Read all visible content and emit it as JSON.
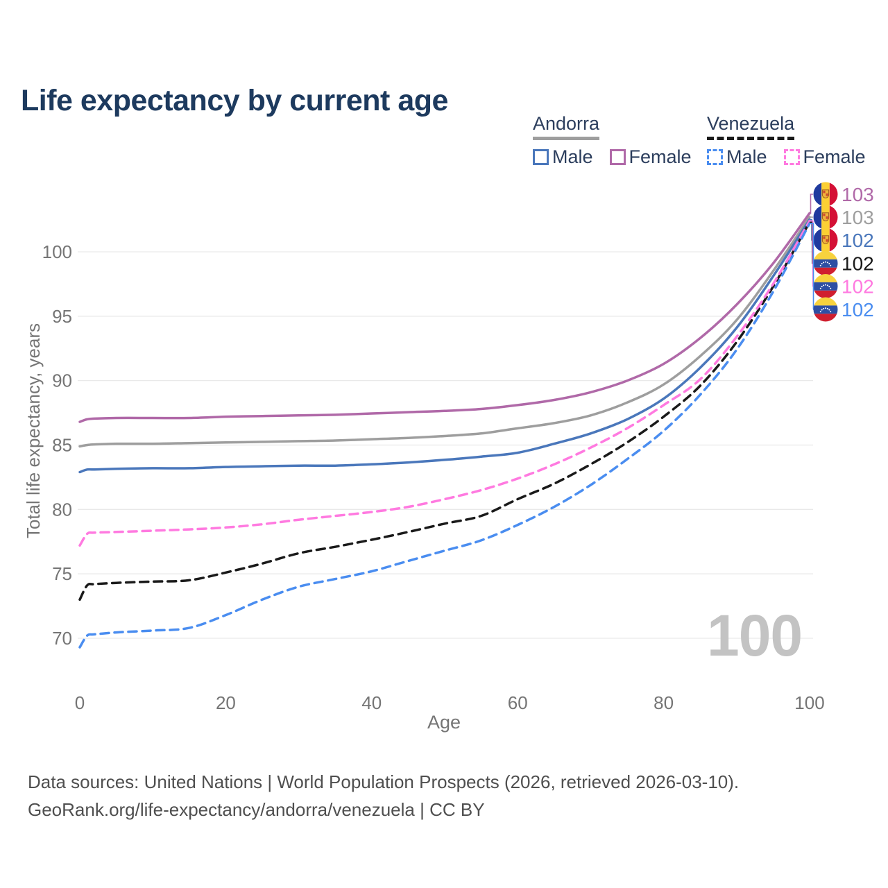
{
  "page": {
    "title": "Life expectancy by current age"
  },
  "colors": {
    "title_text": "#1d3a5e",
    "legend_text": "#2c3e5d",
    "axis_text": "#757575",
    "grid": "#e9e9e9",
    "watermark": "#c3c3c3",
    "footer_text": "#4f4f4f"
  },
  "legend": {
    "groups": [
      {
        "name": "Andorra",
        "line_style": "solid",
        "line_color": "#9e9e9e",
        "items": [
          {
            "label": "Male",
            "color": "#4a77bb",
            "dashed": false
          },
          {
            "label": "Female",
            "color": "#b069a8",
            "dashed": false
          }
        ]
      },
      {
        "name": "Venezuela",
        "line_style": "dashed",
        "line_color": "#1a1a1a",
        "items": [
          {
            "label": "Male",
            "color": "#4a8df0",
            "dashed": true
          },
          {
            "label": "Female",
            "color": "#ff7ae0",
            "dashed": true
          }
        ]
      }
    ]
  },
  "chart_data": {
    "type": "line",
    "title": "Life expectancy by current age",
    "xlabel": "Age",
    "ylabel": "Total life expectancy, years",
    "xlim": [
      0,
      100
    ],
    "ylim": [
      68,
      104.5
    ],
    "xticks": [
      0,
      20,
      40,
      60,
      80,
      100
    ],
    "yticks": [
      70,
      75,
      80,
      85,
      90,
      95,
      100
    ],
    "grid": "horizontal",
    "legend_position": "top-right",
    "ages": [
      0,
      1,
      2,
      5,
      10,
      15,
      20,
      25,
      30,
      35,
      40,
      45,
      50,
      55,
      60,
      65,
      70,
      75,
      80,
      85,
      90,
      95,
      100
    ],
    "series": [
      {
        "name": "Andorra Female",
        "country": "Andorra",
        "sex": "Female",
        "color": "#b069a8",
        "dashed": false,
        "flag": "andorra",
        "end_label": "103",
        "values": [
          86.8,
          87.0,
          87.05,
          87.1,
          87.1,
          87.1,
          87.2,
          87.25,
          87.3,
          87.35,
          87.45,
          87.55,
          87.65,
          87.8,
          88.1,
          88.5,
          89.1,
          90.0,
          91.3,
          93.3,
          95.9,
          99.1,
          103.0
        ]
      },
      {
        "name": "Andorra Both sexes",
        "country": "Andorra",
        "sex": "Both",
        "color": "#9e9e9e",
        "dashed": false,
        "flag": "andorra",
        "end_label": "103",
        "values": [
          84.9,
          85.0,
          85.05,
          85.1,
          85.1,
          85.15,
          85.2,
          85.25,
          85.3,
          85.35,
          85.45,
          85.55,
          85.7,
          85.9,
          86.3,
          86.7,
          87.3,
          88.3,
          89.7,
          91.9,
          94.7,
          98.5,
          102.7
        ]
      },
      {
        "name": "Andorra Male",
        "country": "Andorra",
        "sex": "Male",
        "color": "#4a77bb",
        "dashed": false,
        "flag": "andorra",
        "end_label": "102",
        "values": [
          82.9,
          83.1,
          83.1,
          83.15,
          83.2,
          83.2,
          83.3,
          83.35,
          83.4,
          83.4,
          83.5,
          83.65,
          83.85,
          84.1,
          84.4,
          85.1,
          85.9,
          87.0,
          88.6,
          91.0,
          94.1,
          98.1,
          102.5
        ]
      },
      {
        "name": "Venezuela Both sexes",
        "country": "Venezuela",
        "sex": "Both",
        "color": "#1a1a1a",
        "dashed": true,
        "flag": "venezuela",
        "end_label": "102",
        "values": [
          73.0,
          74.1,
          74.2,
          74.3,
          74.4,
          74.5,
          75.1,
          75.8,
          76.6,
          77.1,
          77.65,
          78.25,
          78.9,
          79.5,
          80.8,
          82.0,
          83.5,
          85.2,
          87.2,
          89.6,
          93.0,
          97.3,
          102.3
        ]
      },
      {
        "name": "Venezuela Female",
        "country": "Venezuela",
        "sex": "Female",
        "color": "#ff7ae0",
        "dashed": true,
        "flag": "venezuela",
        "end_label": "102",
        "values": [
          77.2,
          78.1,
          78.2,
          78.25,
          78.35,
          78.45,
          78.6,
          78.85,
          79.2,
          79.5,
          79.8,
          80.2,
          80.8,
          81.5,
          82.4,
          83.5,
          84.8,
          86.3,
          88.1,
          90.1,
          93.4,
          97.5,
          102.4
        ]
      },
      {
        "name": "Venezuela Male",
        "country": "Venezuela",
        "sex": "Male",
        "color": "#4a8df0",
        "dashed": true,
        "flag": "venezuela",
        "end_label": "102",
        "values": [
          69.3,
          70.2,
          70.3,
          70.45,
          70.6,
          70.8,
          71.8,
          73.0,
          74.0,
          74.6,
          75.2,
          76.0,
          76.8,
          77.6,
          78.8,
          80.2,
          81.9,
          83.9,
          86.1,
          88.9,
          92.4,
          96.9,
          102.2
        ]
      }
    ]
  },
  "watermark": "100",
  "footer": {
    "line1": "Data sources: United Nations | World Population Prospects (2026, retrieved 2026-03-10).",
    "line2": "GeoRank.org/life-expectancy/andorra/venezuela | CC BY"
  }
}
